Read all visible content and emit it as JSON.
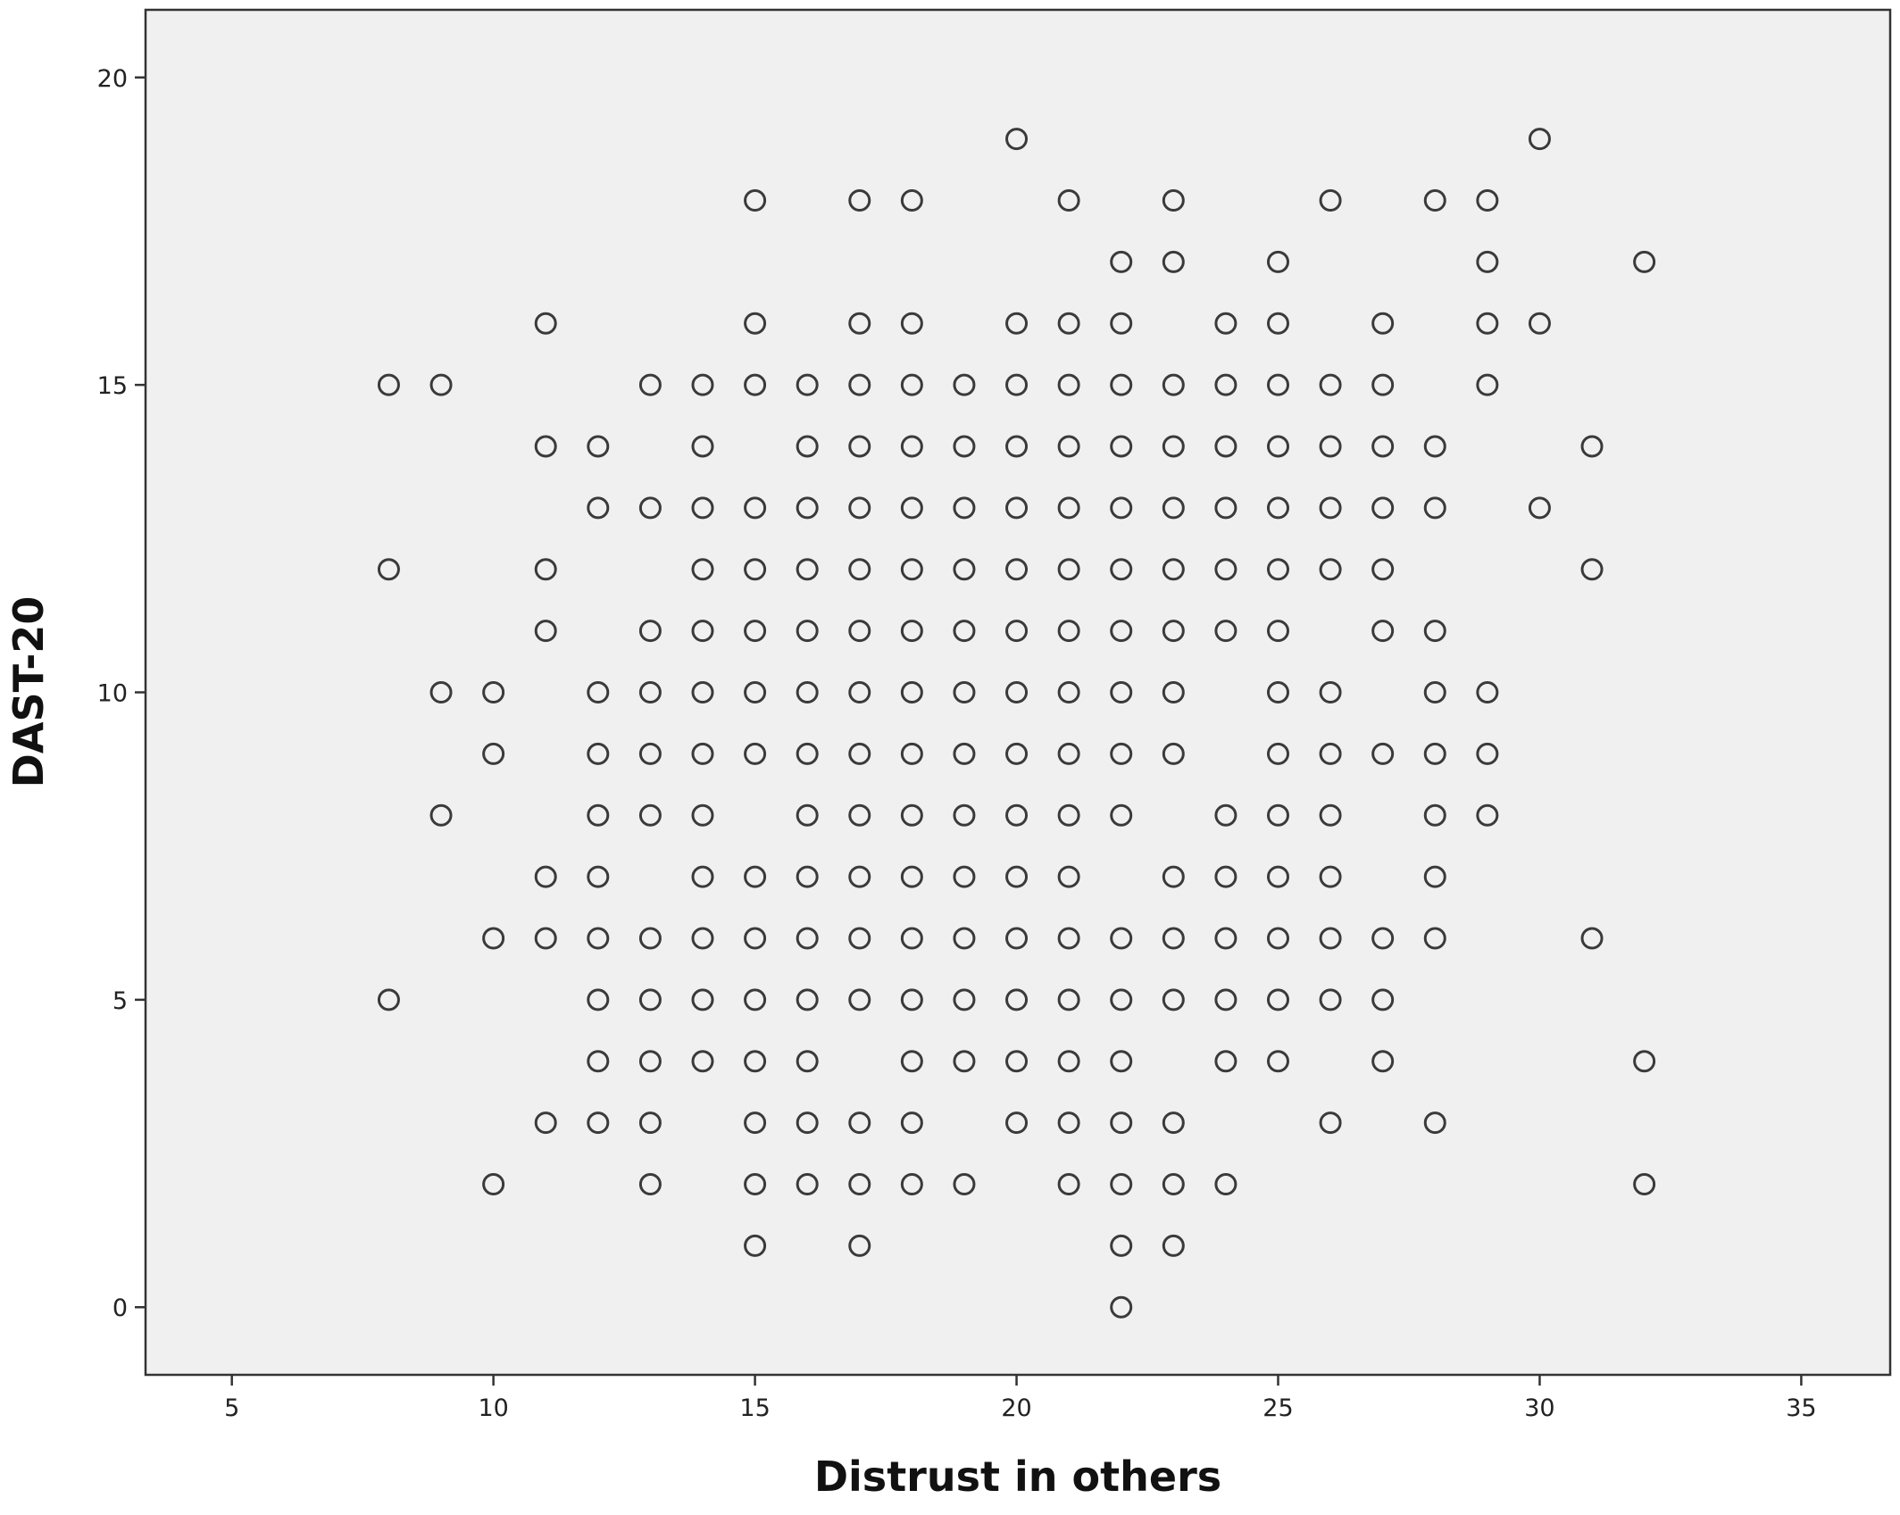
{
  "chart_data": {
    "type": "scatter",
    "x_label": "Distrust in others",
    "y_label": "DAST-20",
    "xlim": [
      3.35,
      36.7
    ],
    "ylim": [
      -1.1,
      21.1
    ],
    "xticks": [
      5,
      10,
      15,
      20,
      25,
      30,
      35
    ],
    "yticks": [
      0,
      5,
      10,
      15,
      20
    ],
    "grid": false,
    "color": "#3a3a3a",
    "background": "#f0f0f0",
    "x": [
      20,
      30,
      15,
      17,
      18,
      21,
      23,
      26,
      28,
      29,
      22,
      23,
      25,
      29,
      32,
      11,
      15,
      17,
      18,
      20,
      21,
      22,
      24,
      25,
      27,
      29,
      30,
      8,
      9,
      13,
      14,
      15,
      16,
      17,
      18,
      19,
      20,
      21,
      22,
      23,
      24,
      25,
      26,
      27,
      29,
      11,
      12,
      14,
      16,
      17,
      18,
      19,
      20,
      21,
      22,
      23,
      24,
      25,
      26,
      27,
      28,
      31,
      12,
      13,
      14,
      15,
      16,
      17,
      18,
      19,
      20,
      21,
      22,
      23,
      24,
      25,
      26,
      27,
      28,
      30,
      8,
      11,
      14,
      15,
      16,
      17,
      18,
      19,
      20,
      21,
      22,
      23,
      24,
      25,
      26,
      27,
      31,
      11,
      13,
      14,
      15,
      16,
      17,
      18,
      19,
      20,
      21,
      22,
      23,
      24,
      25,
      27,
      28,
      9,
      10,
      12,
      13,
      14,
      15,
      16,
      17,
      18,
      19,
      20,
      21,
      22,
      23,
      25,
      26,
      28,
      29,
      10,
      12,
      13,
      14,
      15,
      16,
      17,
      18,
      19,
      20,
      21,
      22,
      23,
      25,
      26,
      27,
      28,
      29,
      9,
      12,
      13,
      14,
      16,
      17,
      18,
      19,
      20,
      21,
      22,
      24,
      25,
      26,
      28,
      29,
      11,
      12,
      14,
      15,
      16,
      17,
      18,
      19,
      20,
      21,
      23,
      24,
      25,
      26,
      28,
      10,
      11,
      12,
      13,
      14,
      15,
      16,
      17,
      18,
      19,
      20,
      21,
      22,
      23,
      24,
      25,
      26,
      27,
      28,
      31,
      8,
      12,
      13,
      14,
      15,
      16,
      17,
      18,
      19,
      20,
      21,
      22,
      23,
      24,
      25,
      26,
      27,
      12,
      13,
      14,
      15,
      16,
      18,
      19,
      20,
      21,
      22,
      24,
      25,
      27,
      32,
      11,
      12,
      13,
      15,
      16,
      17,
      18,
      20,
      21,
      22,
      23,
      26,
      28,
      10,
      13,
      15,
      16,
      17,
      18,
      19,
      21,
      22,
      23,
      24,
      32,
      15,
      17,
      22,
      23,
      22
    ],
    "y": [
      19,
      19,
      18,
      18,
      18,
      18,
      18,
      18,
      18,
      18,
      17,
      17,
      17,
      17,
      17,
      16,
      16,
      16,
      16,
      16,
      16,
      16,
      16,
      16,
      16,
      16,
      16,
      15,
      15,
      15,
      15,
      15,
      15,
      15,
      15,
      15,
      15,
      15,
      15,
      15,
      15,
      15,
      15,
      15,
      15,
      14,
      14,
      14,
      14,
      14,
      14,
      14,
      14,
      14,
      14,
      14,
      14,
      14,
      14,
      14,
      14,
      14,
      13,
      13,
      13,
      13,
      13,
      13,
      13,
      13,
      13,
      13,
      13,
      13,
      13,
      13,
      13,
      13,
      13,
      13,
      12,
      12,
      12,
      12,
      12,
      12,
      12,
      12,
      12,
      12,
      12,
      12,
      12,
      12,
      12,
      12,
      12,
      11,
      11,
      11,
      11,
      11,
      11,
      11,
      11,
      11,
      11,
      11,
      11,
      11,
      11,
      11,
      11,
      10,
      10,
      10,
      10,
      10,
      10,
      10,
      10,
      10,
      10,
      10,
      10,
      10,
      10,
      10,
      10,
      10,
      10,
      9,
      9,
      9,
      9,
      9,
      9,
      9,
      9,
      9,
      9,
      9,
      9,
      9,
      9,
      9,
      9,
      9,
      9,
      8,
      8,
      8,
      8,
      8,
      8,
      8,
      8,
      8,
      8,
      8,
      8,
      8,
      8,
      8,
      8,
      7,
      7,
      7,
      7,
      7,
      7,
      7,
      7,
      7,
      7,
      7,
      7,
      7,
      7,
      7,
      6,
      6,
      6,
      6,
      6,
      6,
      6,
      6,
      6,
      6,
      6,
      6,
      6,
      6,
      6,
      6,
      6,
      6,
      6,
      6,
      5,
      5,
      5,
      5,
      5,
      5,
      5,
      5,
      5,
      5,
      5,
      5,
      5,
      5,
      5,
      5,
      5,
      4,
      4,
      4,
      4,
      4,
      4,
      4,
      4,
      4,
      4,
      4,
      4,
      4,
      4,
      3,
      3,
      3,
      3,
      3,
      3,
      3,
      3,
      3,
      3,
      3,
      3,
      3,
      2,
      2,
      2,
      2,
      2,
      2,
      2,
      2,
      2,
      2,
      2,
      2,
      1,
      1,
      1,
      1,
      0
    ]
  }
}
